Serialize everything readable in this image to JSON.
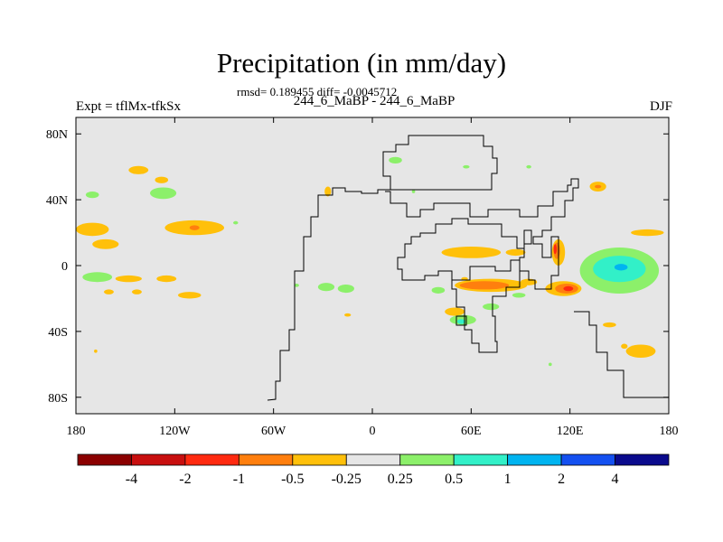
{
  "title": "Precipitation (in mm/day)",
  "stats": "rmsd= 0.189455 diff= -0.0045712",
  "experiment": "Expt = tflMx-tfkSx",
  "runs": "244_6_MaBP - 244_6_MaBP",
  "season": "DJF",
  "axes": {
    "x_ticks": [
      {
        "value": -180,
        "label": "180"
      },
      {
        "value": -120,
        "label": "120W"
      },
      {
        "value": -60,
        "label": "60W"
      },
      {
        "value": 0,
        "label": "0"
      },
      {
        "value": 60,
        "label": "60E"
      },
      {
        "value": 120,
        "label": "120E"
      },
      {
        "value": 180,
        "label": "180"
      }
    ],
    "y_ticks": [
      {
        "value": 80,
        "label": "80N"
      },
      {
        "value": 40,
        "label": "40N"
      },
      {
        "value": 0,
        "label": "0"
      },
      {
        "value": -40,
        "label": "40S"
      },
      {
        "value": -80,
        "label": "80S"
      }
    ],
    "x_range": [
      -180,
      180
    ],
    "y_range": [
      -90,
      90
    ]
  },
  "colorbar": {
    "colors": [
      "#8b0000",
      "#c80f0f",
      "#ff2a10",
      "#ff7f0e",
      "#ffc00a",
      "#e6e6e6",
      "#8cf06a",
      "#32f0c8",
      "#00b4f0",
      "#1450f0",
      "#0a0a8c"
    ],
    "labels": [
      "-4",
      "-2",
      "-1",
      "-0.5",
      "-0.25",
      "0.25",
      "0.5",
      "1",
      "2",
      "4"
    ]
  },
  "fill_color": "#e6e6e6",
  "anomalies": [
    {
      "lon": -142,
      "lat": 58,
      "rx": 6,
      "ry": 2.5,
      "level": "-0.25"
    },
    {
      "lon": -128,
      "lat": 52,
      "rx": 4,
      "ry": 2,
      "level": "-0.25"
    },
    {
      "lon": -170,
      "lat": 43,
      "rx": 4,
      "ry": 2,
      "level": "0.25"
    },
    {
      "lon": -127,
      "lat": 44,
      "rx": 8,
      "ry": 3.5,
      "level": "0.25"
    },
    {
      "lon": -170,
      "lat": 22,
      "rx": 10,
      "ry": 4,
      "level": "-0.25"
    },
    {
      "lon": -162,
      "lat": 13,
      "rx": 8,
      "ry": 3,
      "level": "-0.25"
    },
    {
      "lon": -108,
      "lat": 23,
      "rx": 18,
      "ry": 4.5,
      "level": "-0.25"
    },
    {
      "lon": -108,
      "lat": 23,
      "rx": 3,
      "ry": 1.5,
      "level": "-0.5"
    },
    {
      "lon": -83,
      "lat": 26,
      "rx": 1.5,
      "ry": 1,
      "level": "0.25"
    },
    {
      "lon": -167,
      "lat": -7,
      "rx": 9,
      "ry": 3,
      "level": "0.25"
    },
    {
      "lon": -148,
      "lat": -8,
      "rx": 8,
      "ry": 2,
      "level": "-0.25"
    },
    {
      "lon": -125,
      "lat": -8,
      "rx": 6,
      "ry": 2,
      "level": "-0.25"
    },
    {
      "lon": -160,
      "lat": -16,
      "rx": 3,
      "ry": 1.5,
      "level": "-0.25"
    },
    {
      "lon": -143,
      "lat": -16,
      "rx": 3,
      "ry": 1.5,
      "level": "-0.25"
    },
    {
      "lon": -111,
      "lat": -18,
      "rx": 7,
      "ry": 2,
      "level": "-0.25"
    },
    {
      "lon": -168,
      "lat": -52,
      "rx": 1,
      "ry": 1,
      "level": "-0.25"
    },
    {
      "lon": -28,
      "lat": -13,
      "rx": 5,
      "ry": 2.5,
      "level": "0.25"
    },
    {
      "lon": -16,
      "lat": -14,
      "rx": 5,
      "ry": 2.5,
      "level": "0.25"
    },
    {
      "lon": -46,
      "lat": -12,
      "rx": 1.5,
      "ry": 1,
      "level": "0.25"
    },
    {
      "lon": -15,
      "lat": -30,
      "rx": 2,
      "ry": 1,
      "level": "-0.25"
    },
    {
      "lon": -27,
      "lat": 45,
      "rx": 2,
      "ry": 3,
      "level": "-0.25"
    },
    {
      "lon": 14,
      "lat": 64,
      "rx": 4,
      "ry": 2,
      "level": "0.25"
    },
    {
      "lon": 57,
      "lat": 60,
      "rx": 2,
      "ry": 1,
      "level": "0.25"
    },
    {
      "lon": 95,
      "lat": 60,
      "rx": 1.5,
      "ry": 1,
      "level": "0.25"
    },
    {
      "lon": 25,
      "lat": 45,
      "rx": 1,
      "ry": 1,
      "level": "0.25"
    },
    {
      "lon": 137,
      "lat": 48,
      "rx": 5,
      "ry": 3,
      "level": "-0.25"
    },
    {
      "lon": 137,
      "lat": 48,
      "rx": 2,
      "ry": 1,
      "level": "-0.5"
    },
    {
      "lon": 167,
      "lat": 20,
      "rx": 10,
      "ry": 2,
      "level": "-0.25"
    },
    {
      "lon": 60,
      "lat": 8,
      "rx": 18,
      "ry": 3.5,
      "level": "-0.25"
    },
    {
      "lon": 87,
      "lat": 8,
      "rx": 6,
      "ry": 2,
      "level": "-0.25"
    },
    {
      "lon": 113,
      "lat": 8,
      "rx": 4,
      "ry": 8,
      "level": "-0.25"
    },
    {
      "lon": 112,
      "lat": 9,
      "rx": 2,
      "ry": 5,
      "level": "-0.5"
    },
    {
      "lon": 111,
      "lat": 10,
      "rx": 1,
      "ry": 3,
      "level": "-1"
    },
    {
      "lon": 150,
      "lat": -3,
      "rx": 24,
      "ry": 14,
      "level": "0.25"
    },
    {
      "lon": 150,
      "lat": -2,
      "rx": 16,
      "ry": 8,
      "level": "0.5"
    },
    {
      "lon": 151,
      "lat": -1,
      "rx": 4,
      "ry": 2,
      "level": "1"
    },
    {
      "lon": 72,
      "lat": -12,
      "rx": 22,
      "ry": 4,
      "level": "-0.25"
    },
    {
      "lon": 68,
      "lat": -12,
      "rx": 15,
      "ry": 2.5,
      "level": "-0.5"
    },
    {
      "lon": 56,
      "lat": -8,
      "rx": 2,
      "ry": 1,
      "level": "-0.25"
    },
    {
      "lon": 95,
      "lat": -10,
      "rx": 5,
      "ry": 2,
      "level": "-0.25"
    },
    {
      "lon": 116,
      "lat": -14,
      "rx": 11,
      "ry": 4.5,
      "level": "-0.25"
    },
    {
      "lon": 118,
      "lat": -14,
      "rx": 7,
      "ry": 3,
      "level": "-0.5"
    },
    {
      "lon": 119,
      "lat": -14,
      "rx": 3,
      "ry": 1.5,
      "level": "-1"
    },
    {
      "lon": 89,
      "lat": -18,
      "rx": 4,
      "ry": 1.5,
      "level": "0.25"
    },
    {
      "lon": 72,
      "lat": -25,
      "rx": 5,
      "ry": 2,
      "level": "0.25"
    },
    {
      "lon": 50,
      "lat": -28,
      "rx": 6,
      "ry": 2.5,
      "level": "-0.25"
    },
    {
      "lon": 55,
      "lat": -33,
      "rx": 8,
      "ry": 3,
      "level": "0.25"
    },
    {
      "lon": 54,
      "lat": -34,
      "rx": 2.5,
      "ry": 1.5,
      "level": "0.5"
    },
    {
      "lon": 40,
      "lat": -15,
      "rx": 4,
      "ry": 2,
      "level": "0.25"
    },
    {
      "lon": 144,
      "lat": -36,
      "rx": 4,
      "ry": 1.5,
      "level": "-0.25"
    },
    {
      "lon": 163,
      "lat": -52,
      "rx": 9,
      "ry": 4,
      "level": "-0.25"
    },
    {
      "lon": 153,
      "lat": -49,
      "rx": 2,
      "ry": 1.5,
      "level": "-0.25"
    },
    {
      "lon": 108,
      "lat": -60,
      "rx": 1,
      "ry": 1,
      "level": "0.25"
    }
  ]
}
